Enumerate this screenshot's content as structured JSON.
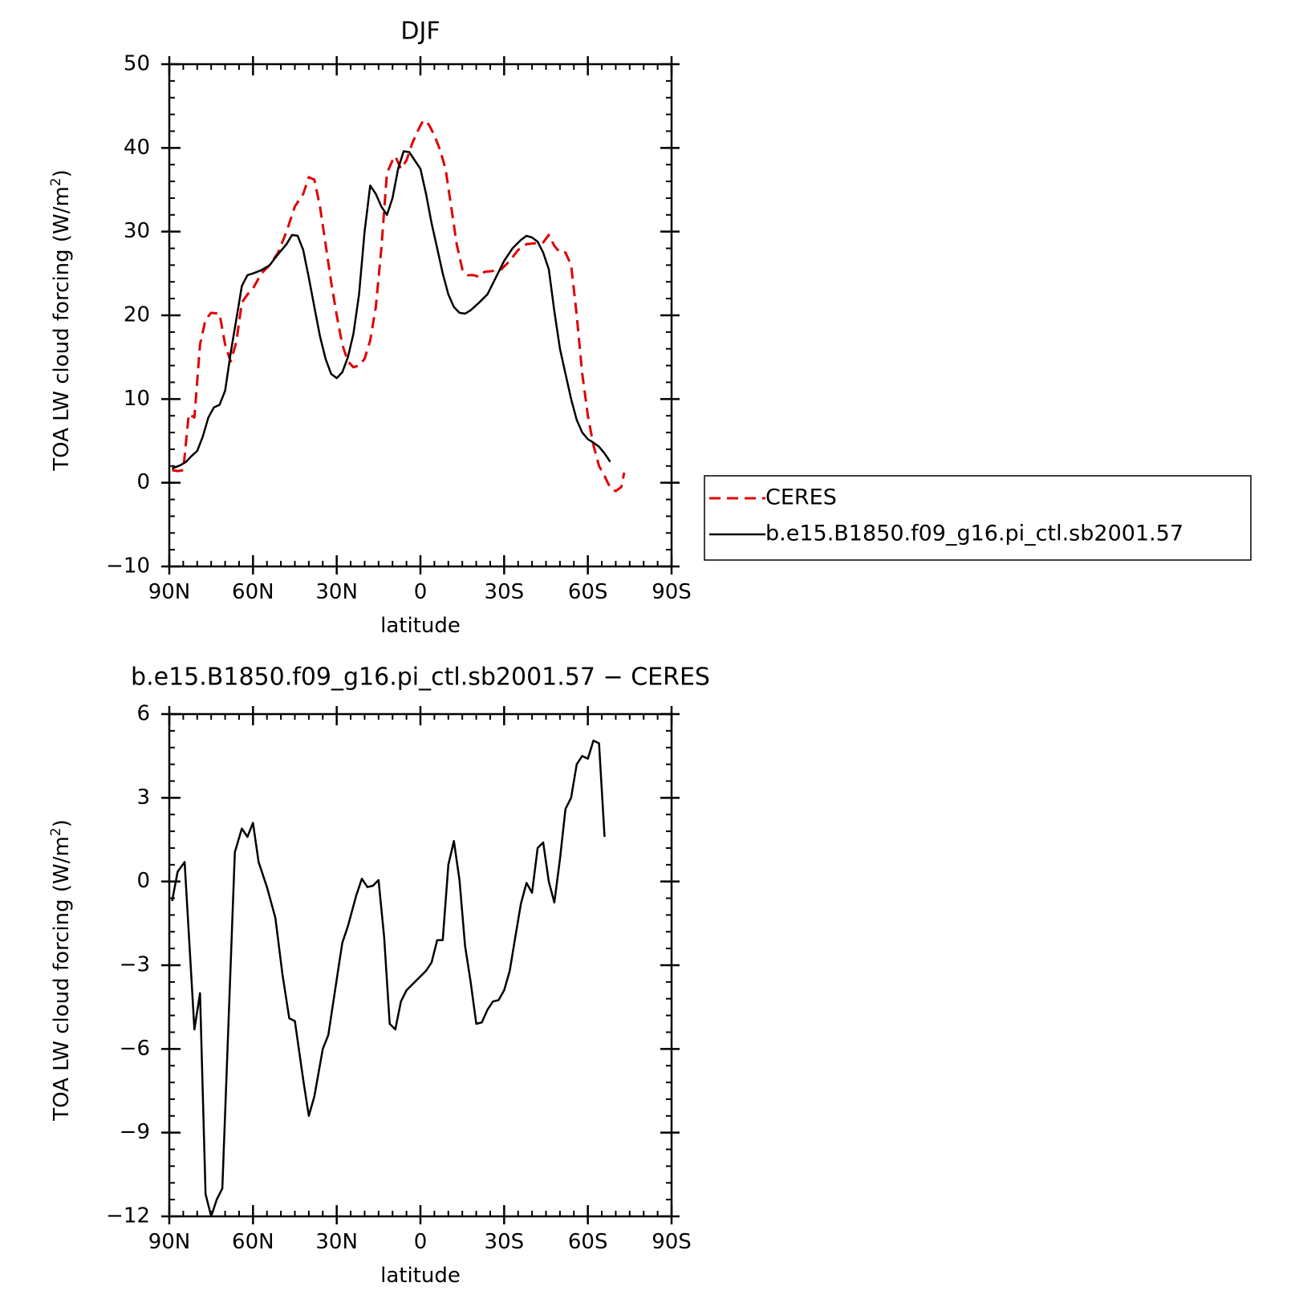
{
  "colors": {
    "ceres": "#e00000",
    "model": "#000000",
    "background": "#ffffff"
  },
  "chart_data": [
    {
      "type": "line",
      "title": "DJF",
      "xlabel": "latitude",
      "ylabel": "TOA LW cloud forcing (W/m",
      "ylabel_sup": "2",
      "ylabel_close": ")",
      "xlim": [
        -90,
        90
      ],
      "ylim": [
        -10,
        50
      ],
      "xticks": [
        {
          "value": -90,
          "label": "90N"
        },
        {
          "value": -60,
          "label": "60N"
        },
        {
          "value": -30,
          "label": "30N"
        },
        {
          "value": 0,
          "label": "0"
        },
        {
          "value": 30,
          "label": "30S"
        },
        {
          "value": 60,
          "label": "60S"
        },
        {
          "value": 90,
          "label": "90S"
        }
      ],
      "yticks": [
        {
          "value": -10,
          "label": "−10"
        },
        {
          "value": 0,
          "label": "0"
        },
        {
          "value": 10,
          "label": "10"
        },
        {
          "value": 20,
          "label": "20"
        },
        {
          "value": 30,
          "label": "30"
        },
        {
          "value": 40,
          "label": "40"
        },
        {
          "value": 50,
          "label": "50"
        }
      ],
      "legend": {
        "placement": "right",
        "entries": [
          "CERES",
          "b.e15.B1850.f09_g16.pi_ctl.sb2001.57"
        ]
      },
      "series": [
        {
          "name": "CERES",
          "style": "dashed",
          "color": "#e00000",
          "points": [
            [
              -89,
              1.5
            ],
            [
              -87,
              1.4
            ],
            [
              -85,
              1.5
            ],
            [
              -83,
              8.2
            ],
            [
              -81,
              7.8
            ],
            [
              -79,
              16.5
            ],
            [
              -77,
              19.5
            ],
            [
              -75,
              20.3
            ],
            [
              -72,
              20.2
            ],
            [
              -70,
              16.5
            ],
            [
              -68,
              14.5
            ],
            [
              -66,
              16.8
            ],
            [
              -64,
              21.5
            ],
            [
              -62,
              22.5
            ],
            [
              -60,
              23.2
            ],
            [
              -57,
              25
            ],
            [
              -54,
              26
            ],
            [
              -51,
              27.5
            ],
            [
              -48,
              30
            ],
            [
              -45,
              33
            ],
            [
              -42,
              34.5
            ],
            [
              -40,
              36.5
            ],
            [
              -38,
              36.2
            ],
            [
              -36,
              33
            ],
            [
              -34,
              28.5
            ],
            [
              -32,
              24
            ],
            [
              -30,
              20
            ],
            [
              -28,
              16.5
            ],
            [
              -26,
              14.5
            ],
            [
              -24,
              13.8
            ],
            [
              -22,
              14
            ],
            [
              -20,
              14.8
            ],
            [
              -18,
              17
            ],
            [
              -16,
              21
            ],
            [
              -14,
              28
            ],
            [
              -12,
              37
            ],
            [
              -10,
              38.5
            ],
            [
              -9,
              39
            ],
            [
              -7,
              37.5
            ],
            [
              -5,
              38.5
            ],
            [
              -3,
              40.5
            ],
            [
              -1,
              42
            ],
            [
              1,
              43.3
            ],
            [
              3,
              42.8
            ],
            [
              5,
              41.5
            ],
            [
              7,
              39.8
            ],
            [
              9,
              37.5
            ],
            [
              11,
              33
            ],
            [
              13,
              28.5
            ],
            [
              15,
              25.5
            ],
            [
              17,
              24.8
            ],
            [
              19,
              24.8
            ],
            [
              21,
              24.6
            ],
            [
              23,
              25.2
            ],
            [
              26,
              25.3
            ],
            [
              29,
              25.5
            ],
            [
              32,
              26.5
            ],
            [
              35,
              27.8
            ],
            [
              38,
              28.5
            ],
            [
              41,
              28.6
            ],
            [
              44,
              28.7
            ],
            [
              46,
              29.6
            ],
            [
              48,
              28.3
            ],
            [
              50,
              27.5
            ],
            [
              52,
              27.5
            ],
            [
              54,
              26
            ],
            [
              56,
              20
            ],
            [
              58,
              13
            ],
            [
              60,
              8
            ],
            [
              62,
              4.5
            ],
            [
              64,
              2
            ],
            [
              66,
              0.8
            ],
            [
              68,
              -0.6
            ],
            [
              70,
              -1
            ],
            [
              72,
              -0.5
            ],
            [
              73,
              1.2
            ]
          ]
        },
        {
          "name": "b.e15.B1850.f09_g16.pi_ctl.sb2001.57",
          "style": "solid",
          "color": "#000000",
          "points": [
            [
              -89,
              1.7
            ],
            [
              -86,
              2.1
            ],
            [
              -84,
              2.5
            ],
            [
              -82,
              3.2
            ],
            [
              -80,
              3.8
            ],
            [
              -78,
              5.5
            ],
            [
              -76,
              7.8
            ],
            [
              -74,
              9
            ],
            [
              -72,
              9.3
            ],
            [
              -70,
              11
            ],
            [
              -68,
              15.5
            ],
            [
              -66,
              19.5
            ],
            [
              -64,
              23.5
            ],
            [
              -62,
              24.8
            ],
            [
              -60,
              25
            ],
            [
              -57,
              25.4
            ],
            [
              -54,
              26
            ],
            [
              -51,
              27.3
            ],
            [
              -48,
              28.5
            ],
            [
              -46,
              29.6
            ],
            [
              -44,
              29.5
            ],
            [
              -42,
              27.8
            ],
            [
              -40,
              24.5
            ],
            [
              -38,
              21
            ],
            [
              -36,
              17.5
            ],
            [
              -34,
              14.8
            ],
            [
              -32,
              13
            ],
            [
              -30,
              12.5
            ],
            [
              -28,
              13.2
            ],
            [
              -26,
              15
            ],
            [
              -24,
              17.8
            ],
            [
              -22,
              22.5
            ],
            [
              -20,
              30
            ],
            [
              -18,
              35.5
            ],
            [
              -16,
              34.5
            ],
            [
              -14,
              33
            ],
            [
              -12,
              32
            ],
            [
              -10,
              34
            ],
            [
              -8,
              37.5
            ],
            [
              -6,
              39.6
            ],
            [
              -4,
              39.5
            ],
            [
              -2,
              38.5
            ],
            [
              0,
              37.5
            ],
            [
              2,
              34.5
            ],
            [
              4,
              31
            ],
            [
              6,
              28
            ],
            [
              8,
              25
            ],
            [
              10,
              22.5
            ],
            [
              12,
              21
            ],
            [
              14,
              20.3
            ],
            [
              16,
              20.2
            ],
            [
              18,
              20.6
            ],
            [
              21,
              21.5
            ],
            [
              24,
              22.5
            ],
            [
              27,
              24.5
            ],
            [
              30,
              26.5
            ],
            [
              33,
              28
            ],
            [
              36,
              29
            ],
            [
              38,
              29.5
            ],
            [
              40,
              29.3
            ],
            [
              42,
              28.8
            ],
            [
              44,
              27.5
            ],
            [
              46,
              25.5
            ],
            [
              48,
              20.5
            ],
            [
              50,
              16
            ],
            [
              52,
              13
            ],
            [
              54,
              10
            ],
            [
              56,
              7.5
            ],
            [
              58,
              6
            ],
            [
              60,
              5.2
            ],
            [
              62,
              4.8
            ],
            [
              64,
              4.3
            ],
            [
              66,
              3.5
            ],
            [
              68,
              2.5
            ]
          ]
        }
      ]
    },
    {
      "type": "line",
      "title": "b.e15.B1850.f09_g16.pi_ctl.sb2001.57 − CERES",
      "xlabel": "latitude",
      "ylabel": "TOA LW cloud forcing (W/m",
      "ylabel_sup": "2",
      "ylabel_close": ")",
      "xlim": [
        -90,
        90
      ],
      "ylim": [
        -12,
        6
      ],
      "xticks": [
        {
          "value": -90,
          "label": "90N"
        },
        {
          "value": -60,
          "label": "60N"
        },
        {
          "value": -30,
          "label": "30N"
        },
        {
          "value": 0,
          "label": "0"
        },
        {
          "value": 30,
          "label": "30S"
        },
        {
          "value": 60,
          "label": "60S"
        },
        {
          "value": 90,
          "label": "90S"
        }
      ],
      "yticks": [
        {
          "value": -12,
          "label": "−12"
        },
        {
          "value": -9,
          "label": "−9"
        },
        {
          "value": -6,
          "label": "−6"
        },
        {
          "value": -3,
          "label": "−3"
        },
        {
          "value": 0,
          "label": "0"
        },
        {
          "value": 3,
          "label": "3"
        },
        {
          "value": 6,
          "label": "6"
        }
      ],
      "series": [
        {
          "style": "solid",
          "color": "#000000",
          "points": [
            [
              -89,
              -0.7
            ],
            [
              -87,
              0.35
            ],
            [
              -84.5,
              0.7
            ],
            [
              -81,
              -5.3
            ],
            [
              -79,
              -4
            ],
            [
              -77,
              -11.2
            ],
            [
              -75,
              -12
            ],
            [
              -73,
              -11.4
            ],
            [
              -71,
              -11
            ],
            [
              -66.5,
              1.05
            ],
            [
              -64,
              1.9
            ],
            [
              -62,
              1.6
            ],
            [
              -60,
              2.1
            ],
            [
              -58,
              0.7
            ],
            [
              -55,
              -0.2
            ],
            [
              -52,
              -1.3
            ],
            [
              -49.5,
              -3.3
            ],
            [
              -47,
              -4.9
            ],
            [
              -45,
              -5
            ],
            [
              -42,
              -7.1
            ],
            [
              -40,
              -8.4
            ],
            [
              -38,
              -7.7
            ],
            [
              -35,
              -6
            ],
            [
              -33,
              -5.5
            ],
            [
              -30,
              -3.5
            ],
            [
              -28,
              -2.2
            ],
            [
              -26,
              -1.6
            ],
            [
              -23,
              -0.5
            ],
            [
              -21,
              0.1
            ],
            [
              -19,
              -0.2
            ],
            [
              -17,
              -0.15
            ],
            [
              -15,
              0.05
            ],
            [
              -13,
              -2
            ],
            [
              -11,
              -5.1
            ],
            [
              -9,
              -5.3
            ],
            [
              -7,
              -4.3
            ],
            [
              -5,
              -3.9
            ],
            [
              -3,
              -3.7
            ],
            [
              -1,
              -3.5
            ],
            [
              2,
              -3.2
            ],
            [
              4,
              -2.9
            ],
            [
              6,
              -2.1
            ],
            [
              8,
              -2.1
            ],
            [
              10,
              0.6
            ],
            [
              12,
              1.45
            ],
            [
              14,
              0.05
            ],
            [
              16,
              -2.3
            ],
            [
              18,
              -3.6
            ],
            [
              20,
              -5.1
            ],
            [
              22,
              -5.05
            ],
            [
              24,
              -4.6
            ],
            [
              26,
              -4.3
            ],
            [
              28,
              -4.25
            ],
            [
              30,
              -3.9
            ],
            [
              32,
              -3.2
            ],
            [
              34,
              -2
            ],
            [
              36,
              -0.8
            ],
            [
              38,
              -0.05
            ],
            [
              40,
              -0.4
            ],
            [
              42,
              1.2
            ],
            [
              44,
              1.4
            ],
            [
              46,
              0
            ],
            [
              48,
              -0.75
            ],
            [
              50,
              0.8
            ],
            [
              52,
              2.6
            ],
            [
              54,
              3
            ],
            [
              56,
              4.2
            ],
            [
              58,
              4.5
            ],
            [
              60,
              4.4
            ],
            [
              62,
              5.05
            ],
            [
              64,
              4.95
            ],
            [
              66,
              1.6
            ]
          ]
        }
      ]
    }
  ]
}
